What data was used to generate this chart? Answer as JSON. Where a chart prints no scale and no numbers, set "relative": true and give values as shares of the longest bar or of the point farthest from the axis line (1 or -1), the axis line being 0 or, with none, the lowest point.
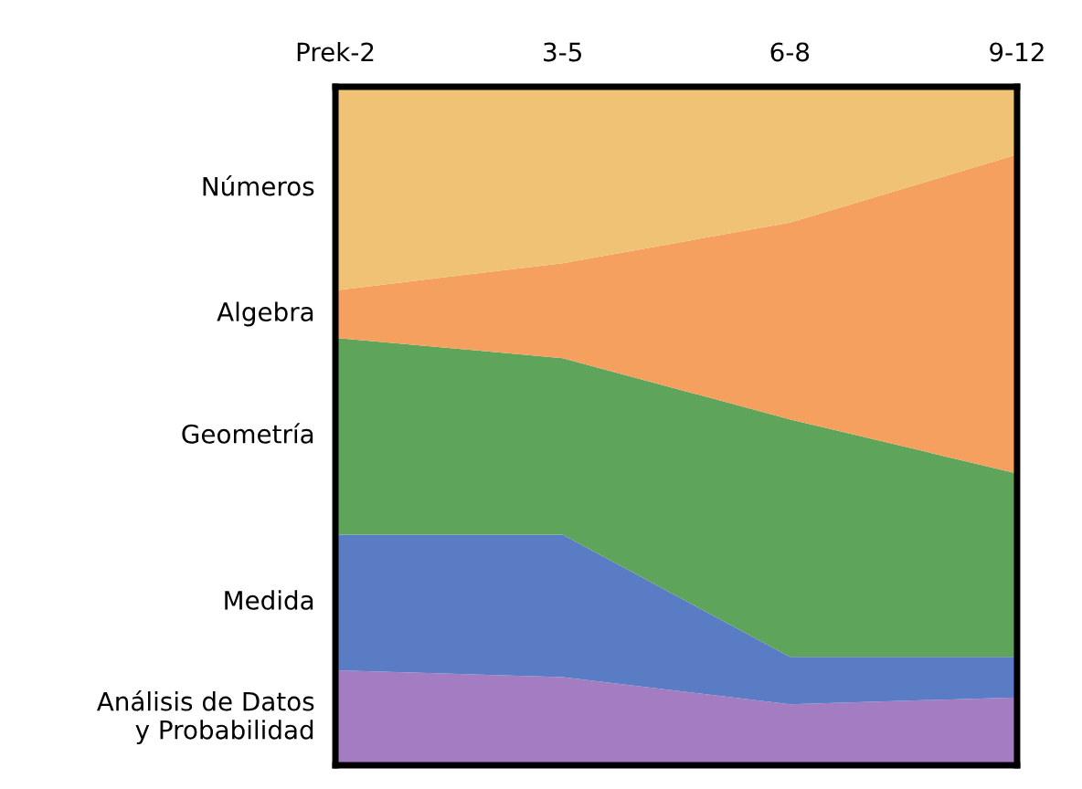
{
  "chart_data": {
    "type": "area",
    "stacked": true,
    "relative": true,
    "legend": false,
    "grid": false,
    "categories": [
      "Prek-2",
      "3-5",
      "6-8",
      "9-12"
    ],
    "series": [
      {
        "name": "Análisis de Datos\ny Probabilidad",
        "color": "#a47cc2",
        "values": [
          0.14,
          0.13,
          0.09,
          0.1
        ]
      },
      {
        "name": "Medida",
        "color": "#5a7cc4",
        "values": [
          0.2,
          0.21,
          0.07,
          0.06
        ]
      },
      {
        "name": "Geometría",
        "color": "#5ea45a",
        "values": [
          0.29,
          0.26,
          0.35,
          0.27
        ]
      },
      {
        "name": "Algebra",
        "color": "#f6a060",
        "values": [
          0.07,
          0.14,
          0.29,
          0.47
        ]
      },
      {
        "name": "Números",
        "color": "#efc275",
        "values": [
          0.3,
          0.26,
          0.2,
          0.1
        ]
      }
    ]
  }
}
